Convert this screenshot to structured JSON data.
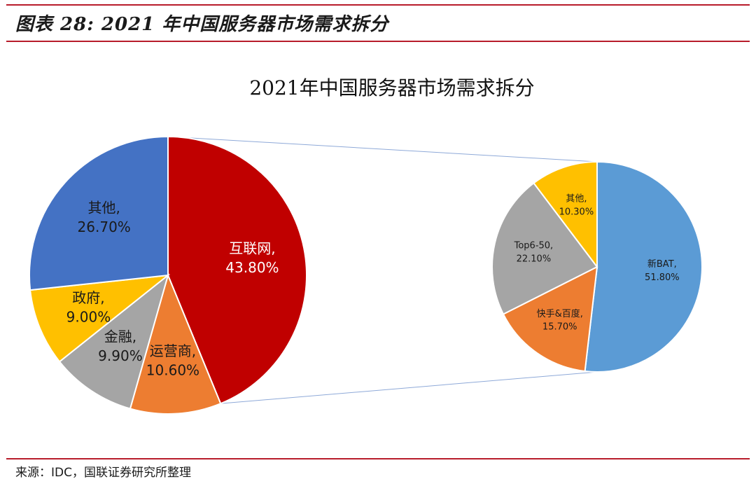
{
  "header": {
    "figure_caption": "图表 28:  2021 年中国服务器市场需求拆分"
  },
  "footer": {
    "source": "来源：IDC，国联证券研究所整理"
  },
  "colors": {
    "accent_rule": "#b81c2b",
    "connector": "#8ea9d8"
  },
  "chart_data": [
    {
      "type": "pie",
      "title": "2021年中国服务器市场需求拆分",
      "slices": [
        {
          "name": "互联网",
          "label": "互联网,",
          "value_label": "43.80%",
          "value": 43.8,
          "color": "#c00000",
          "text_color": "#ffffff"
        },
        {
          "name": "运营商",
          "label": "运营商,",
          "value_label": "10.60%",
          "value": 10.6,
          "color": "#ed7d31",
          "text_color": "#1a1a1a"
        },
        {
          "name": "金融",
          "label": "金融,",
          "value_label": "9.90%",
          "value": 9.9,
          "color": "#a5a5a5",
          "text_color": "#1a1a1a"
        },
        {
          "name": "政府",
          "label": "政府,",
          "value_label": "9.00%",
          "value": 9.0,
          "color": "#ffc000",
          "text_color": "#1a1a1a"
        },
        {
          "name": "其他",
          "label": "其他,",
          "value_label": "26.70%",
          "value": 26.7,
          "color": "#4472c4",
          "text_color": "#1a1a1a"
        }
      ]
    },
    {
      "type": "pie",
      "title": "",
      "breakdown_of": "互联网",
      "slices": [
        {
          "name": "新BAT",
          "label": "新BAT,",
          "value_label": "51.80%",
          "value": 51.8,
          "color": "#5b9bd5",
          "text_color": "#1a1a1a"
        },
        {
          "name": "快手&百度",
          "label": "快手&百度,",
          "value_label": "15.70%",
          "value": 15.7,
          "color": "#ed7d31",
          "text_color": "#1a1a1a"
        },
        {
          "name": "Top6-50",
          "label": "Top6-50,",
          "value_label": "22.10%",
          "value": 22.1,
          "color": "#a5a5a5",
          "text_color": "#1a1a1a"
        },
        {
          "name": "其他",
          "label": "其他,",
          "value_label": "10.30%",
          "value": 10.3,
          "color": "#ffc000",
          "text_color": "#1a1a1a"
        }
      ]
    }
  ]
}
